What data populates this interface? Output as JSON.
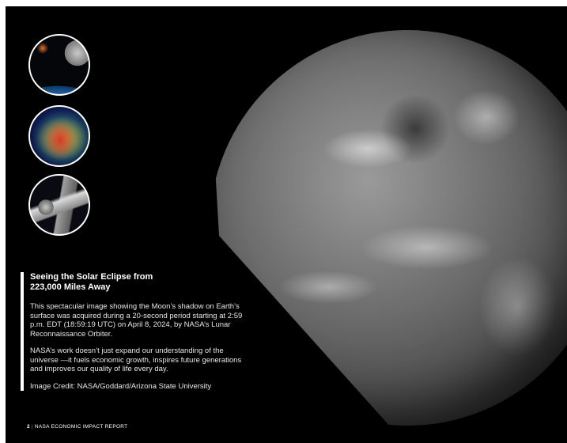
{
  "caption": {
    "title": "Seeing the Solar Eclipse from\n223,000 Miles Away",
    "paragraphs": [
      "This spectacular image showing the Moon’s shadow on Earth’s surface was acquired during a 20-second period starting at 2:59 p.m. EDT (18:59:19 UTC) on April 8, 2024, by NASA’s Lunar Reconnaissance Orbiter.",
      "NASA’s work doesn’t just expand our understanding of the universe —it fuels economic growth, inspires future generations and improves our quality of life every day."
    ],
    "credit": "Image Credit: NASA/Goddard/Arizona State University"
  },
  "footer": {
    "page_number": "2",
    "separator": "|",
    "report_title": "NASA ECONOMIC IMPACT REPORT"
  }
}
